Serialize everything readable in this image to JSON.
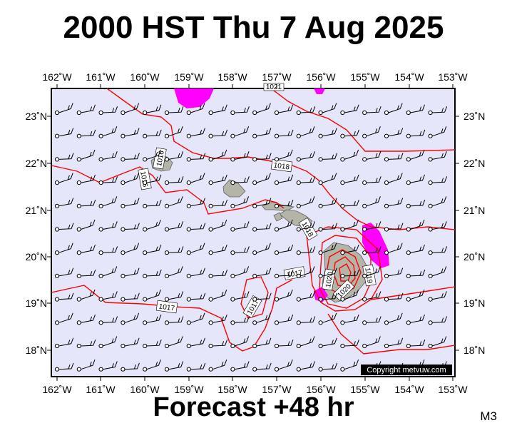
{
  "title": "2000 HST Thu 7 Aug 2025",
  "footer": "Forecast +48 hr",
  "code": "M3",
  "copyright": "Copyright metvuw.com",
  "colors": {
    "background": "#e6e6fa",
    "isobar": "#ff0000",
    "rain": "#ff00ff",
    "land": "#b4b4a8"
  },
  "axes": {
    "lon_labels": [
      "162˚W",
      "161˚W",
      "160˚W",
      "159˚W",
      "158˚W",
      "157˚W",
      "156˚W",
      "155˚W",
      "154˚W",
      "153˚W"
    ],
    "lat_labels": [
      "23˚N",
      "22˚N",
      "21˚N",
      "20˚N",
      "19˚N",
      "18˚N"
    ]
  },
  "isobar_labels": [
    "1016",
    "1016",
    "1018",
    "1018",
    "1017",
    "1017",
    "1017",
    "1019",
    "1020",
    "1020",
    "1021"
  ],
  "wind_barbs": {
    "grid": "0.5 degree",
    "prevailing_direction": "east-northeast",
    "icon": "wind-barb-icon"
  }
}
